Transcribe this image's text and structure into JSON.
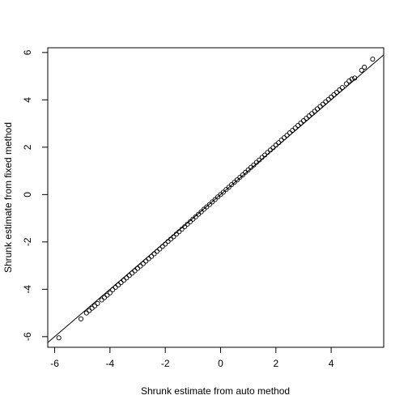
{
  "chart_data": {
    "type": "scatter",
    "title": "",
    "xlabel": "Shrunk estimate from auto method",
    "ylabel": "Shrunk estimate from fixed method",
    "xlim": [
      -6.25,
      5.9
    ],
    "ylim": [
      -6.45,
      6.2
    ],
    "xticks": [
      -6,
      -4,
      -2,
      0,
      2,
      4
    ],
    "yticks": [
      -6,
      -4,
      -2,
      0,
      2,
      4,
      6
    ],
    "grid": false,
    "reference_line": {
      "intercept": 0,
      "slope": 1
    },
    "points": [
      [
        -5.85,
        -6.05
      ],
      [
        -5.05,
        -5.25
      ],
      [
        -4.85,
        -5.0
      ],
      [
        -4.75,
        -4.9
      ],
      [
        -4.65,
        -4.8
      ],
      [
        -4.55,
        -4.7
      ],
      [
        -4.45,
        -4.6
      ],
      [
        -4.3,
        -4.45
      ],
      [
        -4.2,
        -4.35
      ],
      [
        -4.1,
        -4.25
      ],
      [
        -4.0,
        -4.15
      ],
      [
        -3.9,
        -4.02
      ],
      [
        -3.8,
        -3.92
      ],
      [
        -3.7,
        -3.82
      ],
      [
        -3.6,
        -3.72
      ],
      [
        -3.5,
        -3.62
      ],
      [
        -3.4,
        -3.52
      ],
      [
        -3.3,
        -3.42
      ],
      [
        -3.2,
        -3.32
      ],
      [
        -3.1,
        -3.22
      ],
      [
        -3.0,
        -3.12
      ],
      [
        -2.9,
        -3.02
      ],
      [
        -2.8,
        -2.92
      ],
      [
        -2.7,
        -2.81
      ],
      [
        -2.6,
        -2.71
      ],
      [
        -2.5,
        -2.61
      ],
      [
        -2.4,
        -2.5
      ],
      [
        -2.3,
        -2.4
      ],
      [
        -2.2,
        -2.3
      ],
      [
        -2.1,
        -2.19
      ],
      [
        -2.0,
        -2.09
      ],
      [
        -1.9,
        -1.98
      ],
      [
        -1.8,
        -1.88
      ],
      [
        -1.7,
        -1.78
      ],
      [
        -1.6,
        -1.67
      ],
      [
        -1.5,
        -1.57
      ],
      [
        -1.4,
        -1.46
      ],
      [
        -1.3,
        -1.36
      ],
      [
        -1.2,
        -1.25
      ],
      [
        -1.1,
        -1.15
      ],
      [
        -1.0,
        -1.04
      ],
      [
        -0.9,
        -0.94
      ],
      [
        -0.8,
        -0.83
      ],
      [
        -0.7,
        -0.73
      ],
      [
        -0.6,
        -0.62
      ],
      [
        -0.5,
        -0.52
      ],
      [
        -0.4,
        -0.42
      ],
      [
        -0.3,
        -0.31
      ],
      [
        -0.2,
        -0.21
      ],
      [
        -0.1,
        -0.1
      ],
      [
        0.0,
        0.0
      ],
      [
        0.1,
        0.1
      ],
      [
        0.2,
        0.21
      ],
      [
        0.3,
        0.31
      ],
      [
        0.4,
        0.42
      ],
      [
        0.5,
        0.52
      ],
      [
        0.6,
        0.62
      ],
      [
        0.7,
        0.73
      ],
      [
        0.8,
        0.83
      ],
      [
        0.9,
        0.94
      ],
      [
        1.0,
        1.04
      ],
      [
        1.1,
        1.15
      ],
      [
        1.2,
        1.25
      ],
      [
        1.3,
        1.36
      ],
      [
        1.4,
        1.46
      ],
      [
        1.5,
        1.57
      ],
      [
        1.6,
        1.67
      ],
      [
        1.7,
        1.78
      ],
      [
        1.8,
        1.88
      ],
      [
        1.9,
        1.98
      ],
      [
        2.0,
        2.09
      ],
      [
        2.1,
        2.19
      ],
      [
        2.2,
        2.3
      ],
      [
        2.3,
        2.4
      ],
      [
        2.4,
        2.5
      ],
      [
        2.5,
        2.61
      ],
      [
        2.6,
        2.71
      ],
      [
        2.7,
        2.81
      ],
      [
        2.8,
        2.92
      ],
      [
        2.9,
        3.02
      ],
      [
        3.0,
        3.12
      ],
      [
        3.1,
        3.22
      ],
      [
        3.2,
        3.32
      ],
      [
        3.3,
        3.42
      ],
      [
        3.4,
        3.52
      ],
      [
        3.5,
        3.62
      ],
      [
        3.6,
        3.72
      ],
      [
        3.7,
        3.82
      ],
      [
        3.8,
        3.92
      ],
      [
        3.9,
        4.02
      ],
      [
        4.0,
        4.12
      ],
      [
        4.1,
        4.22
      ],
      [
        4.2,
        4.32
      ],
      [
        4.3,
        4.42
      ],
      [
        4.4,
        4.52
      ],
      [
        4.55,
        4.68
      ],
      [
        4.65,
        4.8
      ],
      [
        4.75,
        4.88
      ],
      [
        4.85,
        4.92
      ],
      [
        5.1,
        5.25
      ],
      [
        5.2,
        5.38
      ],
      [
        5.5,
        5.72
      ]
    ]
  }
}
